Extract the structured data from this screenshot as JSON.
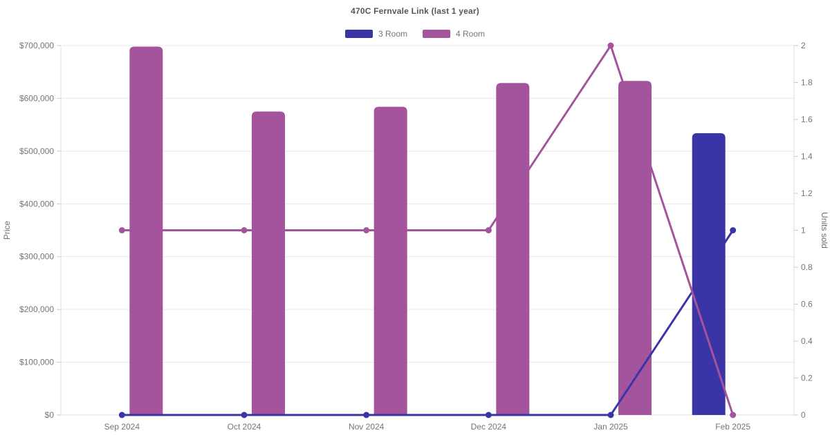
{
  "title": "470C Fernvale Link (last 1 year)",
  "chart_data": {
    "type": "bar+line",
    "title": "470C Fernvale Link (last 1 year)",
    "categories": [
      "Sep 2024",
      "Oct 2024",
      "Nov 2024",
      "Dec 2024",
      "Jan 2025",
      "Feb 2025"
    ],
    "series": [
      {
        "name": "3 Room",
        "color": "#3B34A6",
        "bar_prices": [
          null,
          null,
          null,
          null,
          null,
          534000
        ],
        "line_units_sold": [
          0,
          0,
          0,
          0,
          0,
          1
        ]
      },
      {
        "name": "4 Room",
        "color": "#A4549D",
        "bar_prices": [
          698000,
          575000,
          584000,
          629000,
          633000,
          null
        ],
        "line_units_sold": [
          1,
          1,
          1,
          1,
          2,
          0
        ]
      }
    ],
    "left_axis": {
      "label": "Price",
      "min": 0,
      "max": 700000,
      "step": 100000,
      "ticks": [
        "$0",
        "$100,000",
        "$200,000",
        "$300,000",
        "$400,000",
        "$500,000",
        "$600,000",
        "$700,000"
      ]
    },
    "right_axis": {
      "label": "Units sold",
      "min": 0,
      "max": 2,
      "step": 0.2,
      "ticks": [
        "0",
        "0.2",
        "0.4",
        "0.6",
        "0.8",
        "1",
        "1.2",
        "1.4",
        "1.6",
        "1.8",
        "2"
      ]
    },
    "legend_position": "top-center",
    "grid": "horizontal-only",
    "styles": {
      "grid_color": "#E9E9E9",
      "axis_color": "#DCDCDC",
      "tick_color": "#C9C9C9",
      "tick_label_color": "#757575",
      "axis_title_color": "#6E6E6E",
      "title_color": "#565656",
      "background": "#FFFFFF"
    }
  }
}
